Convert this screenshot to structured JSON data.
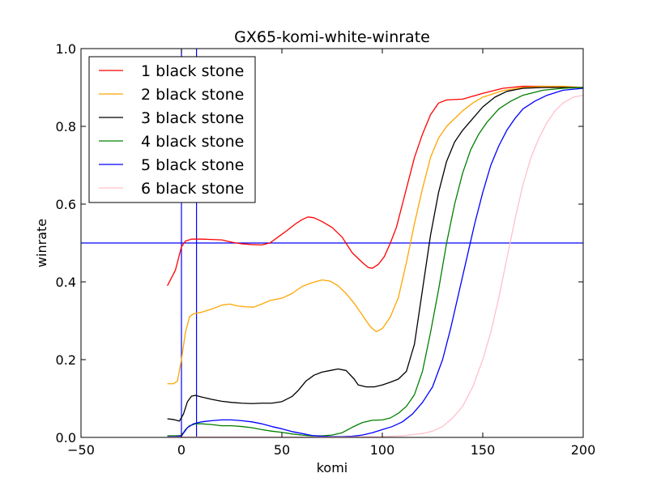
{
  "chart_data": {
    "type": "line",
    "title": "GX65-komi-white-winrate",
    "xlabel": "komi",
    "ylabel": "winrate",
    "xlim": [
      -50,
      200
    ],
    "ylim": [
      0.0,
      1.0
    ],
    "xticks": [
      -50,
      0,
      50,
      100,
      150,
      200
    ],
    "yticks": [
      0.0,
      0.2,
      0.4,
      0.6,
      0.8,
      1.0
    ],
    "xtick_labels": [
      "−50",
      "0",
      "50",
      "100",
      "150",
      "200"
    ],
    "ytick_labels": [
      "0.0",
      "0.2",
      "0.4",
      "0.6",
      "0.8",
      "1.0"
    ],
    "grid": false,
    "legend_position": "top-left",
    "reference_lines": [
      {
        "orientation": "horizontal",
        "value": 0.5,
        "color": "#0000ff"
      },
      {
        "orientation": "vertical",
        "value": 0,
        "color": "#0000ff"
      },
      {
        "orientation": "vertical",
        "value": 7.5,
        "color": "#0000ff"
      }
    ],
    "series": [
      {
        "name": "1 black stone",
        "color": "#ff0000",
        "points": [
          [
            -7,
            0.39
          ],
          [
            -5,
            0.41
          ],
          [
            -3,
            0.43
          ],
          [
            -1,
            0.47
          ],
          [
            0,
            0.49
          ],
          [
            2,
            0.505
          ],
          [
            5,
            0.51
          ],
          [
            10,
            0.51
          ],
          [
            20,
            0.508
          ],
          [
            25,
            0.502
          ],
          [
            30,
            0.498
          ],
          [
            35,
            0.496
          ],
          [
            40,
            0.495
          ],
          [
            44,
            0.5
          ],
          [
            48,
            0.515
          ],
          [
            52,
            0.53
          ],
          [
            57,
            0.55
          ],
          [
            60,
            0.56
          ],
          [
            63,
            0.567
          ],
          [
            66,
            0.565
          ],
          [
            70,
            0.555
          ],
          [
            75,
            0.54
          ],
          [
            80,
            0.515
          ],
          [
            85,
            0.475
          ],
          [
            90,
            0.45
          ],
          [
            93,
            0.437
          ],
          [
            95,
            0.435
          ],
          [
            98,
            0.445
          ],
          [
            101,
            0.465
          ],
          [
            104,
            0.5
          ],
          [
            107,
            0.54
          ],
          [
            110,
            0.6
          ],
          [
            113,
            0.66
          ],
          [
            116,
            0.72
          ],
          [
            120,
            0.78
          ],
          [
            124,
            0.83
          ],
          [
            128,
            0.86
          ],
          [
            132,
            0.868
          ],
          [
            140,
            0.87
          ],
          [
            150,
            0.885
          ],
          [
            160,
            0.898
          ],
          [
            170,
            0.903
          ],
          [
            180,
            0.903
          ],
          [
            190,
            0.902
          ],
          [
            200,
            0.9
          ]
        ]
      },
      {
        "name": "2 black stone",
        "color": "#ffa500",
        "points": [
          [
            -7,
            0.138
          ],
          [
            -4,
            0.138
          ],
          [
            -2,
            0.145
          ],
          [
            0,
            0.2
          ],
          [
            2,
            0.27
          ],
          [
            4,
            0.31
          ],
          [
            6,
            0.318
          ],
          [
            10,
            0.322
          ],
          [
            15,
            0.33
          ],
          [
            20,
            0.34
          ],
          [
            24,
            0.343
          ],
          [
            28,
            0.338
          ],
          [
            32,
            0.336
          ],
          [
            36,
            0.335
          ],
          [
            40,
            0.343
          ],
          [
            44,
            0.352
          ],
          [
            50,
            0.358
          ],
          [
            55,
            0.37
          ],
          [
            60,
            0.388
          ],
          [
            65,
            0.398
          ],
          [
            70,
            0.405
          ],
          [
            74,
            0.402
          ],
          [
            78,
            0.39
          ],
          [
            82,
            0.37
          ],
          [
            86,
            0.345
          ],
          [
            90,
            0.315
          ],
          [
            94,
            0.285
          ],
          [
            97,
            0.272
          ],
          [
            100,
            0.28
          ],
          [
            104,
            0.31
          ],
          [
            108,
            0.36
          ],
          [
            112,
            0.45
          ],
          [
            116,
            0.55
          ],
          [
            120,
            0.64
          ],
          [
            124,
            0.72
          ],
          [
            128,
            0.77
          ],
          [
            132,
            0.8
          ],
          [
            136,
            0.82
          ],
          [
            140,
            0.84
          ],
          [
            145,
            0.86
          ],
          [
            150,
            0.875
          ],
          [
            160,
            0.892
          ],
          [
            170,
            0.9
          ],
          [
            180,
            0.903
          ],
          [
            190,
            0.903
          ],
          [
            200,
            0.9
          ]
        ]
      },
      {
        "name": "3 black stone",
        "color": "#000000",
        "points": [
          [
            -7,
            0.048
          ],
          [
            -4,
            0.046
          ],
          [
            -1,
            0.042
          ],
          [
            1,
            0.06
          ],
          [
            3,
            0.092
          ],
          [
            5,
            0.106
          ],
          [
            7,
            0.108
          ],
          [
            10,
            0.104
          ],
          [
            15,
            0.098
          ],
          [
            20,
            0.093
          ],
          [
            25,
            0.09
          ],
          [
            30,
            0.088
          ],
          [
            35,
            0.087
          ],
          [
            40,
            0.088
          ],
          [
            45,
            0.088
          ],
          [
            50,
            0.092
          ],
          [
            55,
            0.105
          ],
          [
            58,
            0.12
          ],
          [
            62,
            0.145
          ],
          [
            66,
            0.16
          ],
          [
            70,
            0.168
          ],
          [
            74,
            0.172
          ],
          [
            78,
            0.176
          ],
          [
            82,
            0.172
          ],
          [
            86,
            0.15
          ],
          [
            88,
            0.135
          ],
          [
            92,
            0.13
          ],
          [
            96,
            0.13
          ],
          [
            100,
            0.135
          ],
          [
            104,
            0.142
          ],
          [
            108,
            0.15
          ],
          [
            112,
            0.17
          ],
          [
            116,
            0.24
          ],
          [
            120,
            0.38
          ],
          [
            124,
            0.52
          ],
          [
            128,
            0.63
          ],
          [
            132,
            0.71
          ],
          [
            136,
            0.76
          ],
          [
            140,
            0.79
          ],
          [
            145,
            0.82
          ],
          [
            150,
            0.85
          ],
          [
            156,
            0.875
          ],
          [
            162,
            0.89
          ],
          [
            170,
            0.898
          ],
          [
            180,
            0.9
          ],
          [
            190,
            0.9
          ],
          [
            200,
            0.9
          ]
        ]
      },
      {
        "name": "4 black stone",
        "color": "#008000",
        "points": [
          [
            -7,
            0.004
          ],
          [
            -3,
            0.004
          ],
          [
            0,
            0.005
          ],
          [
            2,
            0.02
          ],
          [
            4,
            0.03
          ],
          [
            7,
            0.035
          ],
          [
            10,
            0.035
          ],
          [
            15,
            0.033
          ],
          [
            20,
            0.03
          ],
          [
            25,
            0.03
          ],
          [
            30,
            0.028
          ],
          [
            35,
            0.025
          ],
          [
            40,
            0.02
          ],
          [
            45,
            0.016
          ],
          [
            50,
            0.013
          ],
          [
            55,
            0.009
          ],
          [
            60,
            0.006
          ],
          [
            65,
            0.004
          ],
          [
            70,
            0.004
          ],
          [
            75,
            0.006
          ],
          [
            80,
            0.012
          ],
          [
            85,
            0.026
          ],
          [
            90,
            0.038
          ],
          [
            95,
            0.044
          ],
          [
            100,
            0.045
          ],
          [
            104,
            0.05
          ],
          [
            108,
            0.062
          ],
          [
            112,
            0.08
          ],
          [
            116,
            0.11
          ],
          [
            120,
            0.17
          ],
          [
            124,
            0.27
          ],
          [
            128,
            0.38
          ],
          [
            132,
            0.5
          ],
          [
            136,
            0.6
          ],
          [
            140,
            0.68
          ],
          [
            144,
            0.74
          ],
          [
            148,
            0.78
          ],
          [
            152,
            0.81
          ],
          [
            158,
            0.845
          ],
          [
            164,
            0.865
          ],
          [
            170,
            0.88
          ],
          [
            180,
            0.893
          ],
          [
            190,
            0.898
          ],
          [
            200,
            0.9
          ]
        ]
      },
      {
        "name": "5 black stone",
        "color": "#0000ff",
        "points": [
          [
            -7,
            0.002
          ],
          [
            -3,
            0.002
          ],
          [
            0,
            0.004
          ],
          [
            3,
            0.025
          ],
          [
            6,
            0.035
          ],
          [
            10,
            0.04
          ],
          [
            15,
            0.043
          ],
          [
            20,
            0.045
          ],
          [
            25,
            0.045
          ],
          [
            30,
            0.043
          ],
          [
            35,
            0.04
          ],
          [
            40,
            0.035
          ],
          [
            45,
            0.028
          ],
          [
            50,
            0.022
          ],
          [
            55,
            0.015
          ],
          [
            60,
            0.01
          ],
          [
            65,
            0.005
          ],
          [
            70,
            0.003
          ],
          [
            75,
            0.002
          ],
          [
            80,
            0.002
          ],
          [
            85,
            0.003
          ],
          [
            90,
            0.006
          ],
          [
            95,
            0.012
          ],
          [
            100,
            0.02
          ],
          [
            105,
            0.028
          ],
          [
            110,
            0.04
          ],
          [
            115,
            0.06
          ],
          [
            120,
            0.09
          ],
          [
            125,
            0.13
          ],
          [
            130,
            0.2
          ],
          [
            134,
            0.28
          ],
          [
            138,
            0.37
          ],
          [
            142,
            0.46
          ],
          [
            146,
            0.55
          ],
          [
            150,
            0.63
          ],
          [
            154,
            0.7
          ],
          [
            158,
            0.75
          ],
          [
            162,
            0.79
          ],
          [
            166,
            0.82
          ],
          [
            170,
            0.845
          ],
          [
            176,
            0.865
          ],
          [
            182,
            0.88
          ],
          [
            190,
            0.893
          ],
          [
            200,
            0.898
          ]
        ]
      },
      {
        "name": "6 black stone",
        "color": "#ffc0cb",
        "points": [
          [
            -7,
            0.001
          ],
          [
            0,
            0.001
          ],
          [
            20,
            0.001
          ],
          [
            40,
            0.001
          ],
          [
            60,
            0.001
          ],
          [
            80,
            0.001
          ],
          [
            100,
            0.002
          ],
          [
            110,
            0.004
          ],
          [
            120,
            0.01
          ],
          [
            125,
            0.016
          ],
          [
            130,
            0.028
          ],
          [
            135,
            0.05
          ],
          [
            140,
            0.08
          ],
          [
            145,
            0.13
          ],
          [
            150,
            0.2
          ],
          [
            154,
            0.27
          ],
          [
            158,
            0.36
          ],
          [
            162,
            0.46
          ],
          [
            166,
            0.56
          ],
          [
            170,
            0.65
          ],
          [
            174,
            0.72
          ],
          [
            178,
            0.77
          ],
          [
            182,
            0.81
          ],
          [
            186,
            0.84
          ],
          [
            190,
            0.86
          ],
          [
            195,
            0.875
          ],
          [
            200,
            0.88
          ]
        ]
      }
    ]
  }
}
